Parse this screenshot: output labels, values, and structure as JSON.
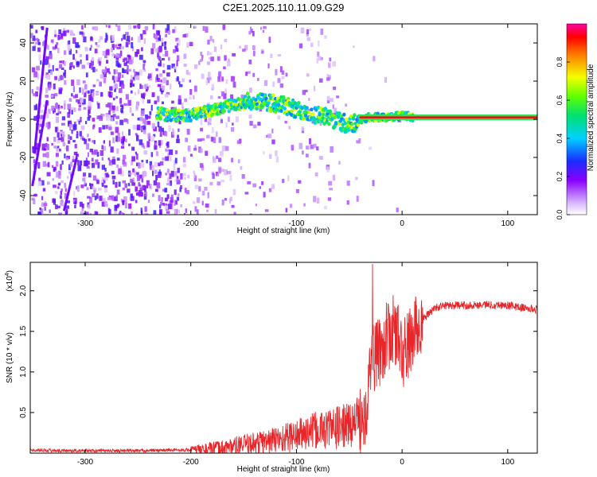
{
  "title": "C2E1.2025.110.11.09.G29",
  "chart_data": [
    {
      "type": "heatmap",
      "xlabel": "Height of straight line (km)",
      "ylabel": "Frequency (Hz)",
      "xlim": [
        -352,
        128
      ],
      "ylim": [
        -50,
        50
      ],
      "xticks": [
        -300,
        -200,
        -100,
        0,
        100
      ],
      "yticks": [
        -40,
        -20,
        0,
        20,
        40
      ],
      "colorbar": {
        "label": "Normalized spectral amplitude",
        "range": [
          0,
          1
        ],
        "ticks": [
          "0.0",
          "0.2",
          "0.4",
          "0.6",
          "0.8"
        ]
      },
      "signal_track": {
        "x": [
          -232,
          -215,
          -200,
          -185,
          -170,
          -155,
          -140,
          -130,
          -120,
          -110,
          -100,
          -90,
          -80,
          -70,
          -60,
          -50,
          -45,
          -40,
          -30,
          -20,
          -10,
          0,
          10,
          50,
          128
        ],
        "y": [
          3,
          2,
          2,
          4,
          6,
          8,
          10,
          9,
          8,
          7,
          5,
          3,
          2,
          1,
          -1,
          -3,
          -2,
          0,
          1,
          1,
          1,
          2,
          1,
          1,
          1
        ]
      }
    },
    {
      "type": "line",
      "xlabel": "Height of straight line (km)",
      "ylabel": "SNR (10 * v/v)",
      "ylabel_exponent": "(x10",
      "ylabel_exponent_power": "4",
      "xlim": [
        -352,
        128
      ],
      "ylim": [
        0,
        2.35
      ],
      "xticks": [
        -300,
        -200,
        -100,
        0,
        100
      ],
      "yticks": [
        0.5,
        1.0,
        1.5,
        2.0
      ],
      "yticklabels": [
        "0.5",
        "1.0",
        "1.5",
        "2.0"
      ],
      "series": [
        {
          "color": "#e8262a",
          "x": [
            -352,
            -320,
            -300,
            -250,
            -200,
            -175,
            -150,
            -125,
            -100,
            -90,
            -80,
            -70,
            -60,
            -50,
            -45,
            -40,
            -35,
            -32,
            -30,
            -28,
            -25,
            -20,
            -15,
            -10,
            -5,
            0,
            5,
            10,
            20,
            30,
            40,
            60,
            80,
            100,
            110,
            120,
            128
          ],
          "y": [
            0.04,
            0.03,
            0.03,
            0.03,
            0.04,
            0.06,
            0.1,
            0.15,
            0.22,
            0.25,
            0.28,
            0.3,
            0.32,
            0.35,
            0.38,
            0.42,
            0.55,
            0.75,
            1.05,
            1.25,
            1.15,
            1.3,
            1.4,
            1.5,
            1.5,
            1.2,
            1.3,
            1.45,
            1.65,
            1.78,
            1.82,
            1.82,
            1.83,
            1.82,
            1.8,
            1.78,
            1.77
          ]
        }
      ]
    }
  ]
}
